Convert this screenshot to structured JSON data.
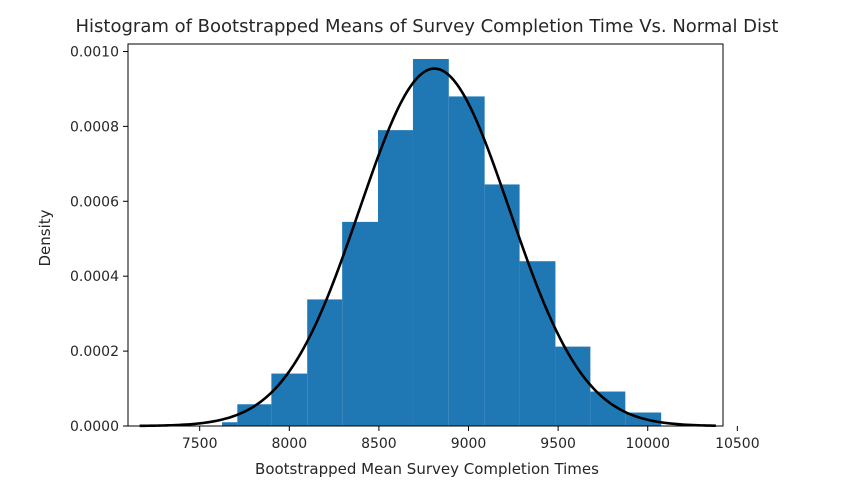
{
  "chart_data": {
    "type": "bar",
    "title": "Histogram of Bootstrapped Means of Survey Completion Time Vs. Normal Dist",
    "xlabel": "Bootstrapped Mean Survey Completion Times",
    "ylabel": "Density",
    "xlim": [
      7100,
      10420
    ],
    "ylim": [
      0,
      0.00102
    ],
    "xticks": [
      7500,
      8000,
      8500,
      9000,
      9500,
      10000,
      10500
    ],
    "xtick_labels": [
      "7500",
      "8000",
      "8500",
      "9000",
      "9500",
      "10000",
      "10500"
    ],
    "yticks": [
      0,
      0.0002,
      0.0004,
      0.0006,
      0.0008,
      0.001
    ],
    "ytick_labels": [
      "0.0000",
      "0.0002",
      "0.0004",
      "0.0006",
      "0.0008",
      "0.0010"
    ],
    "grid": false,
    "histogram": {
      "color": "#1f77b4",
      "bins": [
        {
          "x0": 7625,
          "x1": 7710,
          "density": 1e-05
        },
        {
          "x0": 7710,
          "x1": 7900,
          "density": 5.8e-05
        },
        {
          "x0": 7900,
          "x1": 8100,
          "density": 0.00014
        },
        {
          "x0": 8100,
          "x1": 8295,
          "density": 0.000338
        },
        {
          "x0": 8295,
          "x1": 8495,
          "density": 0.000545
        },
        {
          "x0": 8495,
          "x1": 8690,
          "density": 0.00079
        },
        {
          "x0": 8690,
          "x1": 8890,
          "density": 0.00098
        },
        {
          "x0": 8890,
          "x1": 9090,
          "density": 0.00088
        },
        {
          "x0": 9090,
          "x1": 9285,
          "density": 0.000645
        },
        {
          "x0": 9285,
          "x1": 9485,
          "density": 0.00044
        },
        {
          "x0": 9485,
          "x1": 9680,
          "density": 0.000212
        },
        {
          "x0": 9680,
          "x1": 9875,
          "density": 9.2e-05
        },
        {
          "x0": 9875,
          "x1": 10075,
          "density": 3.6e-05
        }
      ]
    },
    "normal_curve": {
      "color": "#000000",
      "mean": 8810,
      "std": 418,
      "x_range": [
        7165,
        10380
      ]
    }
  }
}
